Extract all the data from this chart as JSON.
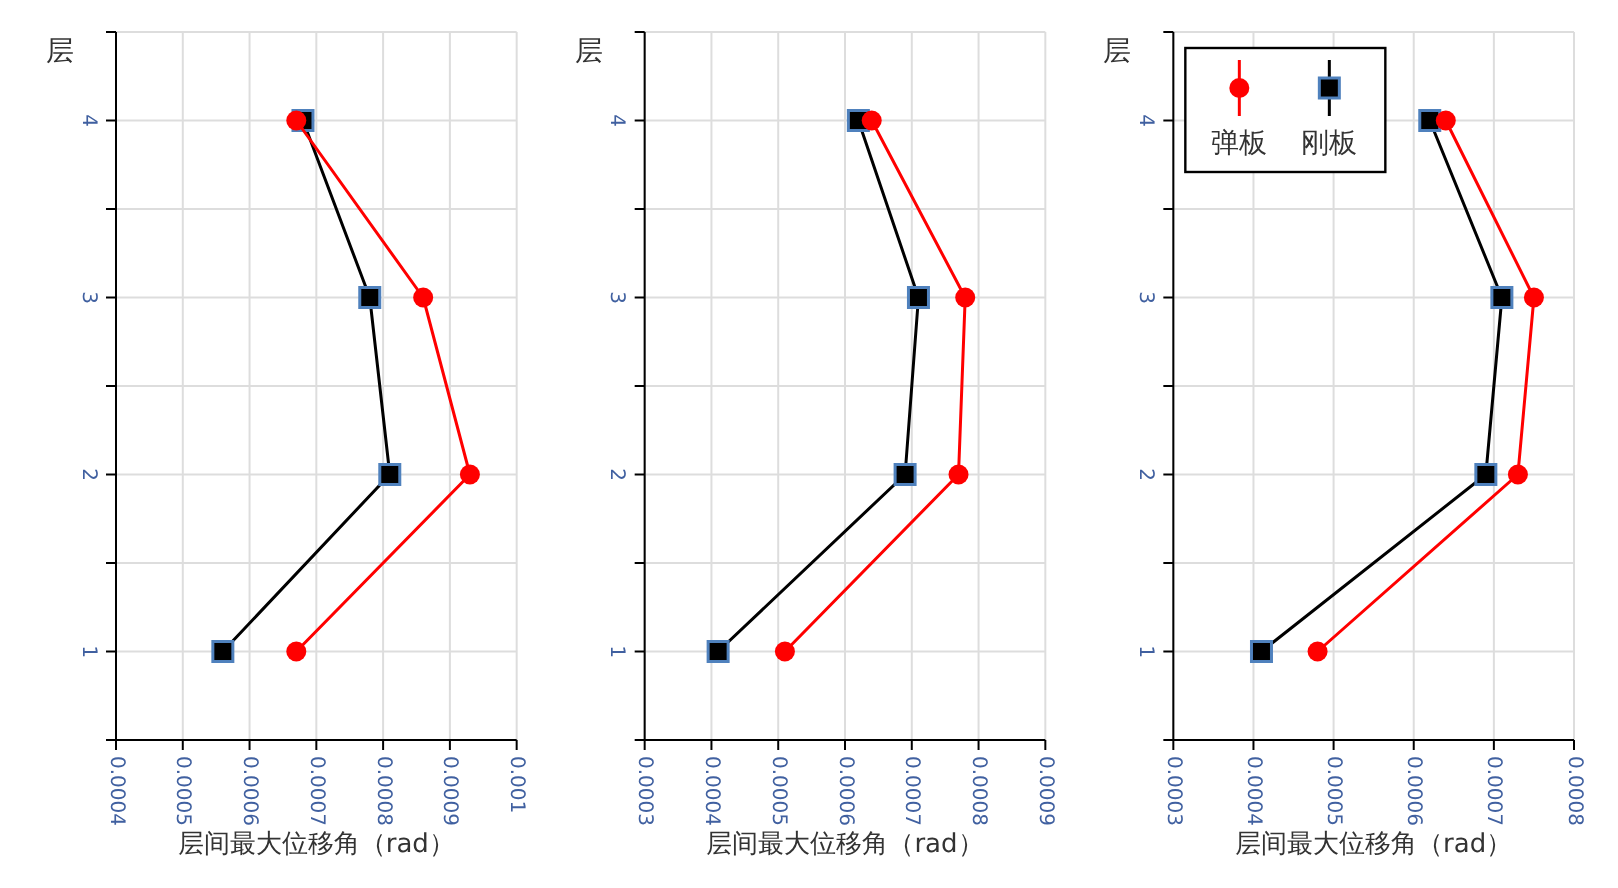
{
  "chart_data": [
    {
      "type": "line",
      "xlabel": "层间最大位移角（rad）",
      "ylabel": "层",
      "xlim": [
        0.0004,
        0.001
      ],
      "xticks": [
        0.0004,
        0.0005,
        0.0006,
        0.0007,
        0.0008,
        0.0009,
        0.001
      ],
      "ylim": [
        0.5,
        4.5
      ],
      "yticks": [
        {
          "value": 0.5,
          "label": null
        },
        1,
        {
          "value": 1.5,
          "label": null
        },
        2,
        {
          "value": 2.5,
          "label": null
        },
        3,
        {
          "value": 3.5,
          "label": null
        },
        4,
        {
          "value": 4.5,
          "label": null
        }
      ],
      "grid": true,
      "legend": false,
      "series": [
        {
          "color": "#ff0000",
          "marker": "circle",
          "x": [
            0.00067,
            0.00093,
            0.00086,
            0.00067
          ],
          "values": [
            1,
            2,
            3,
            4
          ]
        },
        {
          "color": "#000000",
          "marker": "square",
          "x": [
            0.00056,
            0.00081,
            0.00078,
            0.00068
          ],
          "values": [
            1,
            2,
            3,
            4
          ]
        }
      ]
    },
    {
      "type": "line",
      "xlabel": "层间最大位移角（rad）",
      "ylabel": "层",
      "xlim": [
        0.0003,
        0.0009
      ],
      "xticks": [
        0.0003,
        0.0004,
        0.0005,
        0.0006,
        0.0007,
        0.0008,
        0.0009
      ],
      "ylim": [
        0.5,
        4.5
      ],
      "yticks": [
        {
          "value": 0.5,
          "label": null
        },
        1,
        {
          "value": 1.5,
          "label": null
        },
        2,
        {
          "value": 2.5,
          "label": null
        },
        3,
        {
          "value": 3.5,
          "label": null
        },
        4,
        {
          "value": 4.5,
          "label": null
        }
      ],
      "grid": true,
      "legend": false,
      "series": [
        {
          "color": "#ff0000",
          "marker": "circle",
          "x": [
            0.00051,
            0.00077,
            0.00078,
            0.00064
          ],
          "values": [
            1,
            2,
            3,
            4
          ]
        },
        {
          "color": "#000000",
          "marker": "square",
          "x": [
            0.00041,
            0.00069,
            0.00071,
            0.00062
          ],
          "values": [
            1,
            2,
            3,
            4
          ]
        }
      ]
    },
    {
      "type": "line",
      "xlabel": "层间最大位移角（rad）",
      "ylabel": "层",
      "xlim": [
        0.0003,
        0.0008
      ],
      "xticks": [
        0.0003,
        0.0004,
        0.0005,
        0.0006,
        0.0007,
        0.0008
      ],
      "ylim": [
        0.5,
        4.5
      ],
      "yticks": [
        {
          "value": 0.5,
          "label": null
        },
        1,
        {
          "value": 1.5,
          "label": null
        },
        2,
        {
          "value": 2.5,
          "label": null
        },
        3,
        {
          "value": 3.5,
          "label": null
        },
        4,
        {
          "value": 4.5,
          "label": null
        }
      ],
      "grid": true,
      "legend": "top left",
      "series": [
        {
          "name": "弹板",
          "color": "#ff0000",
          "marker": "circle",
          "x": [
            0.00048,
            0.00073,
            0.00075,
            0.00064
          ],
          "values": [
            1,
            2,
            3,
            4
          ]
        },
        {
          "name": "刚板",
          "color": "#000000",
          "marker": "square",
          "x": [
            0.00041,
            0.00069,
            0.00071,
            0.00062
          ],
          "values": [
            1,
            2,
            3,
            4
          ]
        }
      ]
    }
  ]
}
